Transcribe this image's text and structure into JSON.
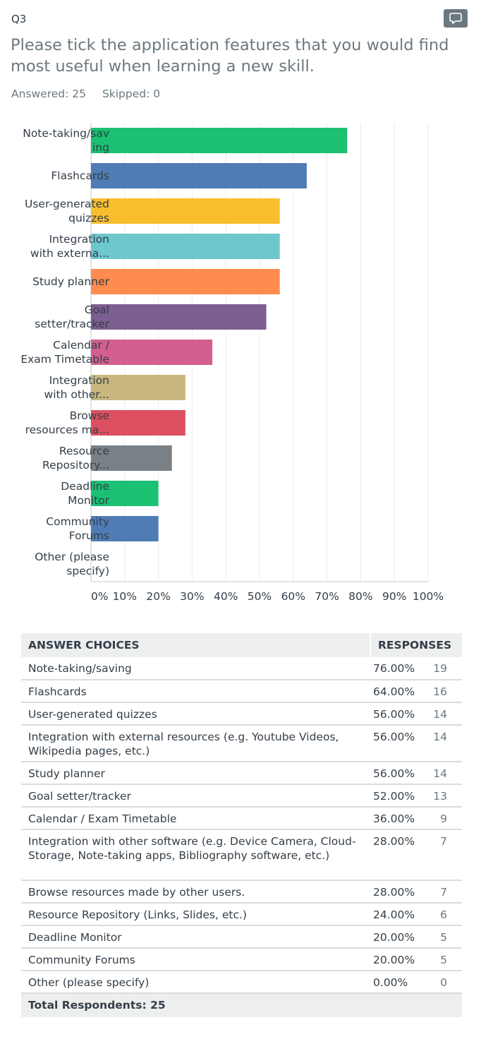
{
  "question": {
    "number": "Q3",
    "text": "Please tick the application features that you would find most useful when learning a new skill.",
    "answered": "Answered: 25",
    "skipped": "Skipped: 0"
  },
  "icons": {
    "comment": "speech-bubble-icon"
  },
  "colors": {
    "green": "#1bc073",
    "blue": "#507cb6",
    "yellow": "#f9be2e",
    "teal": "#6dc8cd",
    "orange": "#ff8b4f",
    "purple": "#7d5e90",
    "pink": "#d25f90",
    "khaki": "#c9b77f",
    "red": "#dc5061",
    "gray": "#7a8186"
  },
  "chart_data": {
    "type": "bar",
    "orientation": "horizontal",
    "categories": [
      [
        "Note-taking/sav",
        "ing"
      ],
      [
        "Flashcards"
      ],
      [
        "User-generated",
        "quizzes"
      ],
      [
        "Integration",
        "with externa..."
      ],
      [
        "Study planner"
      ],
      [
        "Goal",
        "setter/tracker"
      ],
      [
        "Calendar /",
        "Exam Timetable"
      ],
      [
        "Integration",
        "with other..."
      ],
      [
        "Browse",
        "resources ma..."
      ],
      [
        "Resource",
        "Repository..."
      ],
      [
        "Deadline",
        "Monitor"
      ],
      [
        "Community",
        "Forums"
      ],
      [
        "Other (please",
        "specify)"
      ]
    ],
    "values": [
      76,
      64,
      56,
      56,
      56,
      52,
      36,
      28,
      28,
      24,
      20,
      20,
      0
    ],
    "bar_colors": [
      "#1bc073",
      "#507cb6",
      "#f9be2e",
      "#6dc8cd",
      "#ff8b4f",
      "#7d5e90",
      "#d25f90",
      "#c9b77f",
      "#dc5061",
      "#7a8186",
      "#1bc073",
      "#507cb6",
      "#f9be2e"
    ],
    "xticks": [
      "0%",
      "10%",
      "20%",
      "30%",
      "40%",
      "50%",
      "60%",
      "70%",
      "80%",
      "90%",
      "100%"
    ],
    "xlim": [
      0,
      100
    ],
    "grid": true
  },
  "table": {
    "headers": {
      "choices": "ANSWER CHOICES",
      "responses": "RESPONSES"
    },
    "rows": [
      {
        "choice": "Note-taking/saving",
        "pct": "76.00%",
        "count": "19"
      },
      {
        "choice": "Flashcards",
        "pct": "64.00%",
        "count": "16"
      },
      {
        "choice": "User-generated quizzes",
        "pct": "56.00%",
        "count": "14"
      },
      {
        "choice": "Integration with external resources (e.g. Youtube Videos, Wikipedia pages, etc.)",
        "pct": "56.00%",
        "count": "14"
      },
      {
        "choice": "Study planner",
        "pct": "56.00%",
        "count": "14"
      },
      {
        "choice": "Goal setter/tracker",
        "pct": "52.00%",
        "count": "13"
      },
      {
        "choice": "Calendar / Exam Timetable",
        "pct": "36.00%",
        "count": "9"
      },
      {
        "choice": "Integration with other software (e.g. Device Camera, Cloud-Storage, Note-taking apps, Bibliography software, etc.)",
        "pct": "28.00%",
        "count": "7"
      },
      {
        "choice": "Browse resources made by other users.",
        "pct": "28.00%",
        "count": "7"
      },
      {
        "choice": "Resource Repository (Links, Slides, etc.)",
        "pct": "24.00%",
        "count": "6"
      },
      {
        "choice": "Deadline Monitor",
        "pct": "20.00%",
        "count": "5"
      },
      {
        "choice": "Community Forums",
        "pct": "20.00%",
        "count": "5"
      },
      {
        "choice": "Other (please specify)",
        "pct": "0.00%",
        "count": "0"
      }
    ],
    "total": "Total Respondents: 25"
  }
}
